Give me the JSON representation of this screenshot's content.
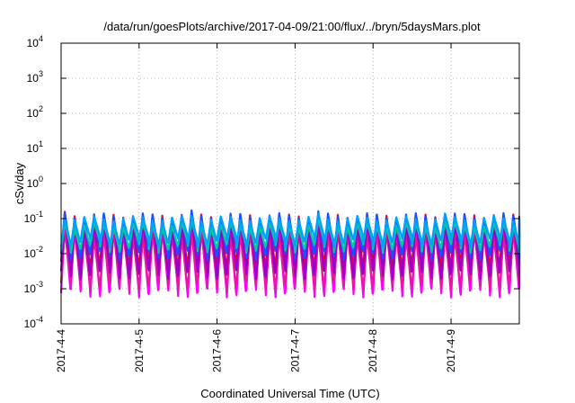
{
  "chart_data": {
    "type": "area",
    "title": "/data/run/goesPlots/archive/2017-04-09/21:00/flux/../bryn/5daysMars.plot",
    "xlabel": "Coordinated Universal Time (UTC)",
    "ylabel": "cSv/day",
    "yscale": "log",
    "ylim": [
      0.0001,
      10000
    ],
    "xlim": [
      "2017-4-4",
      "2017-4-9 21:00"
    ],
    "grid": true,
    "x_ticks": [
      "2017-4-4",
      "2017-4-5",
      "2017-4-6",
      "2017-4-7",
      "2017-4-8",
      "2017-4-9"
    ],
    "y_ticks": [
      {
        "base": "10",
        "exp": "-4"
      },
      {
        "base": "10",
        "exp": "-3"
      },
      {
        "base": "10",
        "exp": "-2"
      },
      {
        "base": "10",
        "exp": "-1"
      },
      {
        "base": "10",
        "exp": "0"
      },
      {
        "base": "10",
        "exp": "1"
      },
      {
        "base": "10",
        "exp": "2"
      },
      {
        "base": "10",
        "exp": "3"
      },
      {
        "base": "10",
        "exp": "4"
      }
    ],
    "cycles_per_day": 8,
    "days": 5.875,
    "series": [
      {
        "color": "#ff00ff",
        "peak": 0.06,
        "trough": 0.00075
      },
      {
        "color": "#e8179b",
        "peak": 0.035,
        "trough": 0.0012
      },
      {
        "color": "#ff0000",
        "peak": 0.11,
        "trough": 0.0045
      },
      {
        "color": "#9900cc",
        "peak": 0.08,
        "trough": 0.0025
      },
      {
        "color": "#1a4fff",
        "peak": 0.12,
        "trough": 0.009
      },
      {
        "color": "#00c8a0",
        "peak": 0.065,
        "trough": 0.014
      },
      {
        "color": "#00a0ff",
        "peak": 0.1,
        "trough": 0.02
      }
    ]
  }
}
